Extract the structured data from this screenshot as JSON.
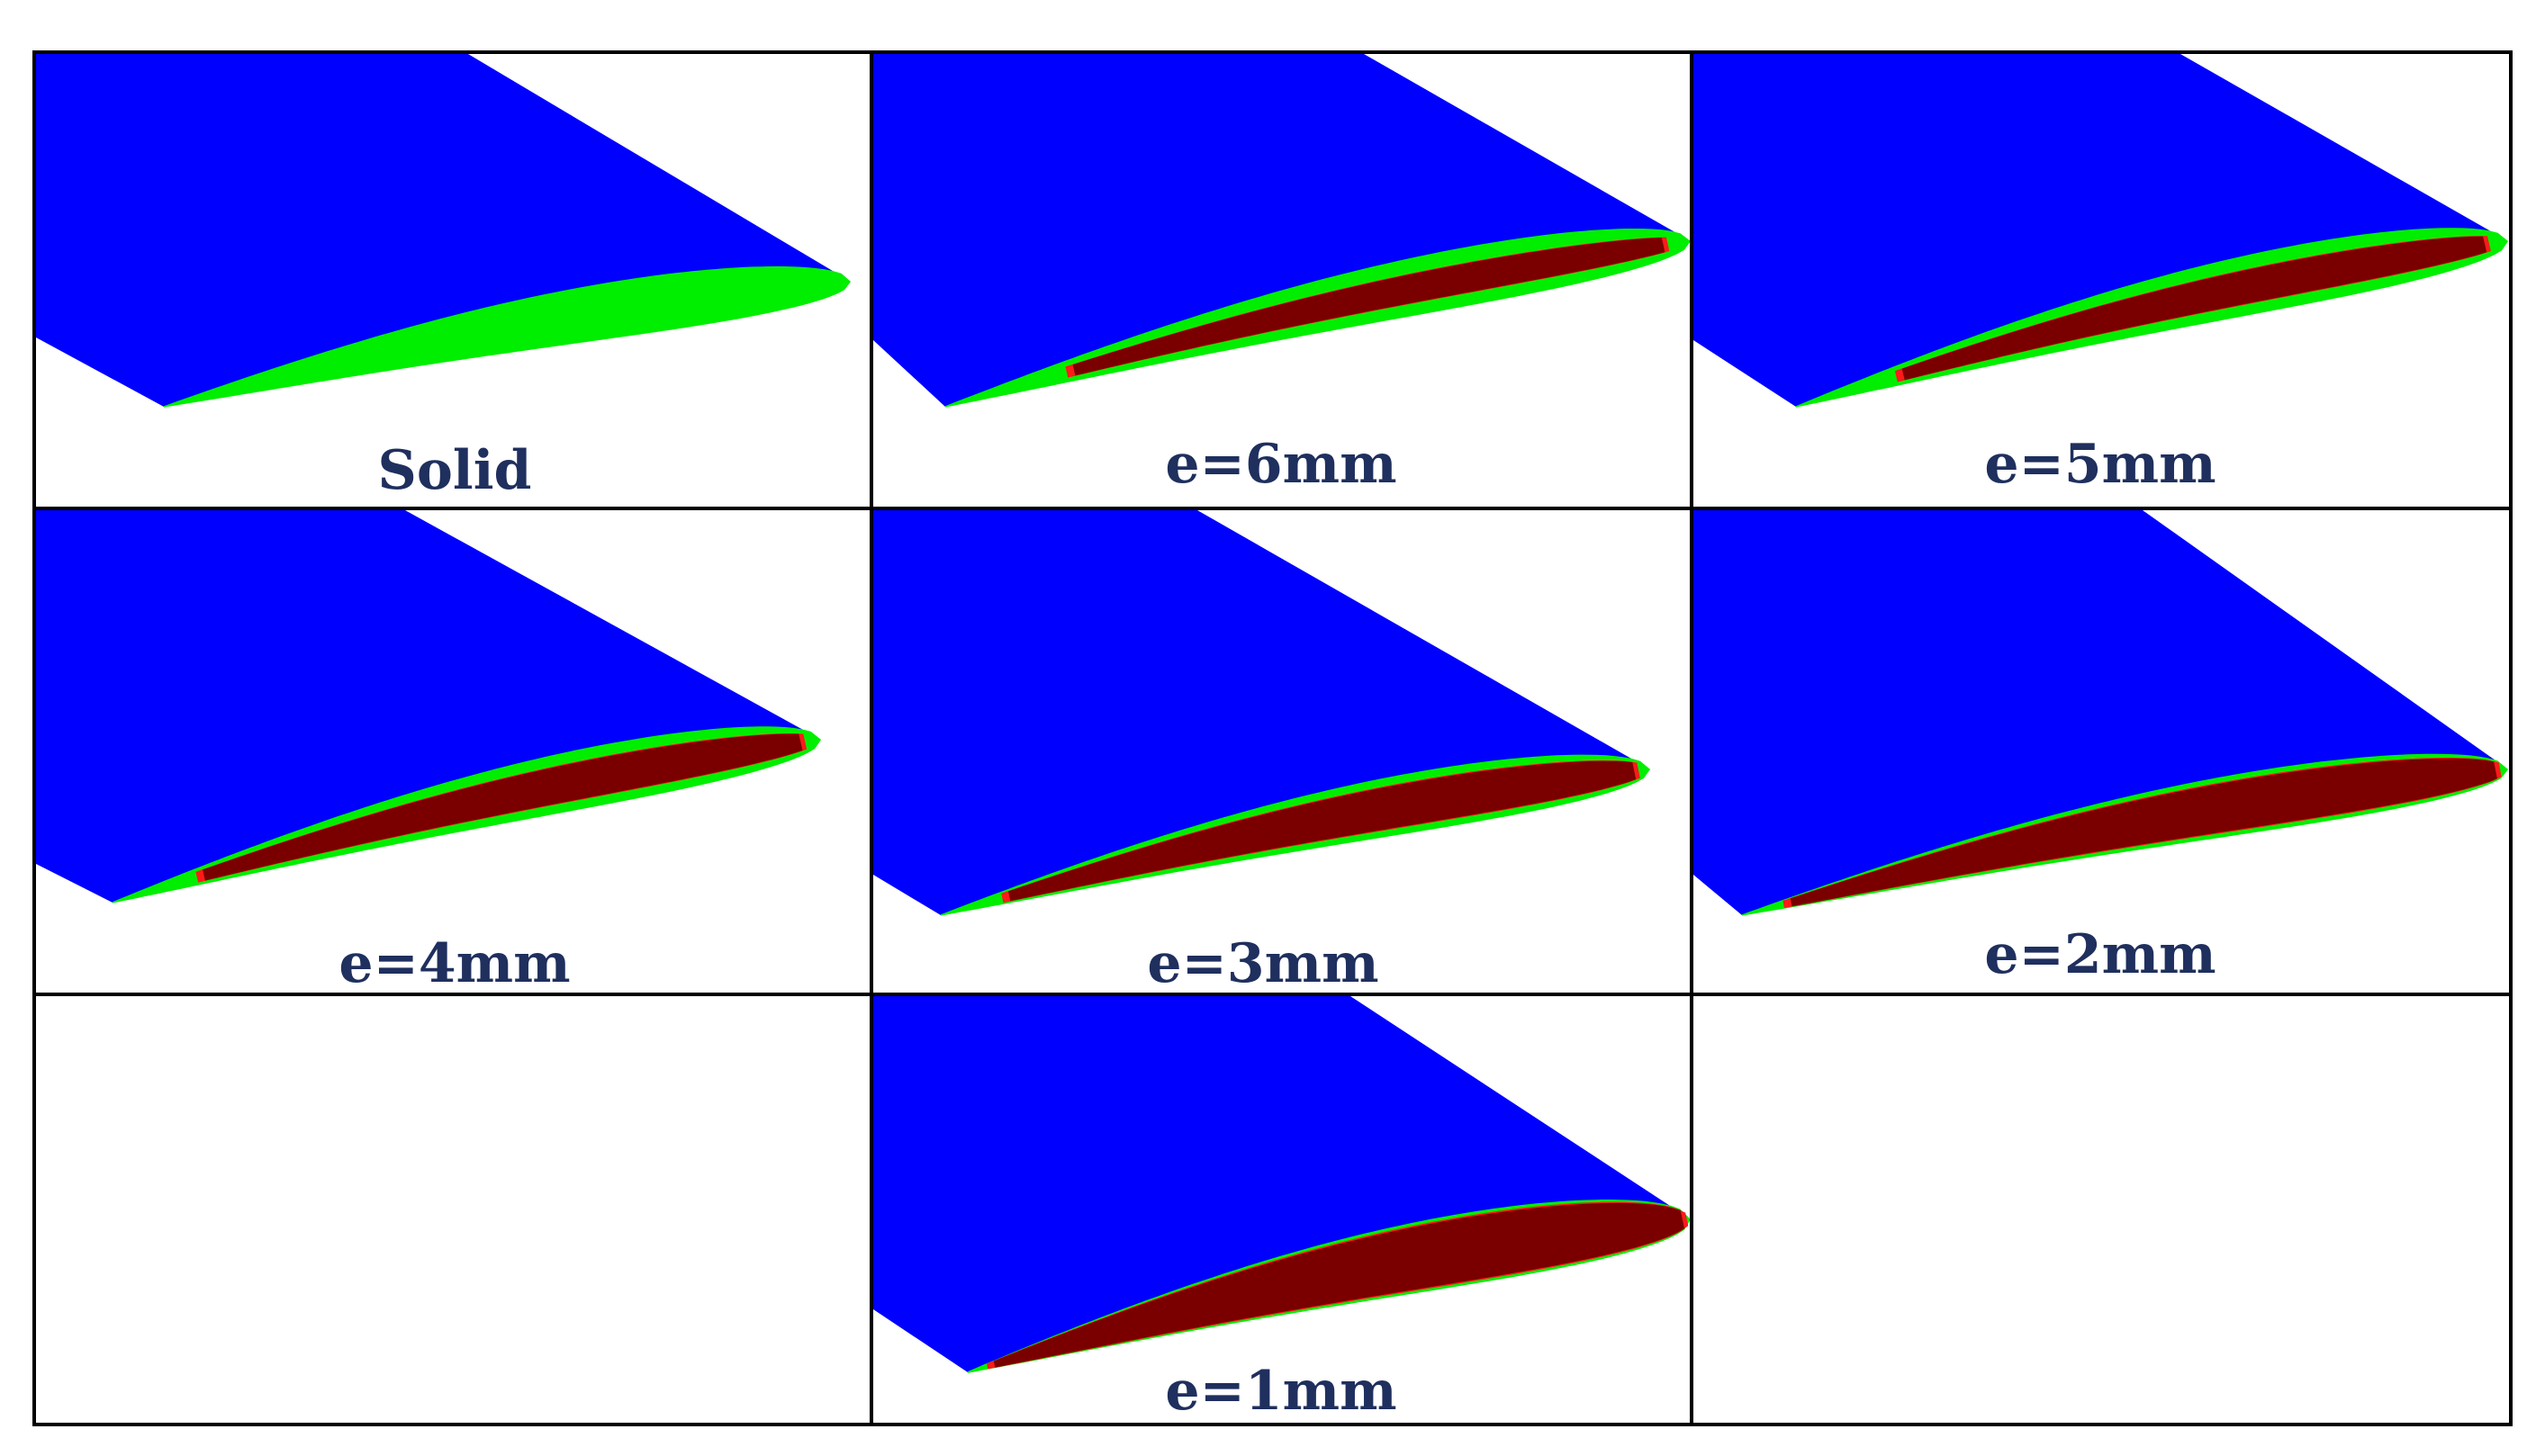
{
  "figure": {
    "colors": {
      "wing_surface": "#0000ff",
      "skin_section": "#00ee00",
      "hollow_core": "#7a0000",
      "inner_edge": "#ff1a1a",
      "label_text": "#1f2f5e",
      "grid_line": "#000000",
      "background": "#ffffff"
    },
    "panels": [
      {
        "label": "Solid",
        "shell": "solid"
      },
      {
        "label": "e=6mm",
        "shell": "6mm"
      },
      {
        "label": "e=5mm",
        "shell": "5mm"
      },
      {
        "label": "e=4mm",
        "shell": "4mm"
      },
      {
        "label": "e=3mm",
        "shell": "3mm"
      },
      {
        "label": "e=2mm",
        "shell": "2mm"
      },
      {
        "label": "e=1mm",
        "shell": "1mm"
      }
    ]
  }
}
